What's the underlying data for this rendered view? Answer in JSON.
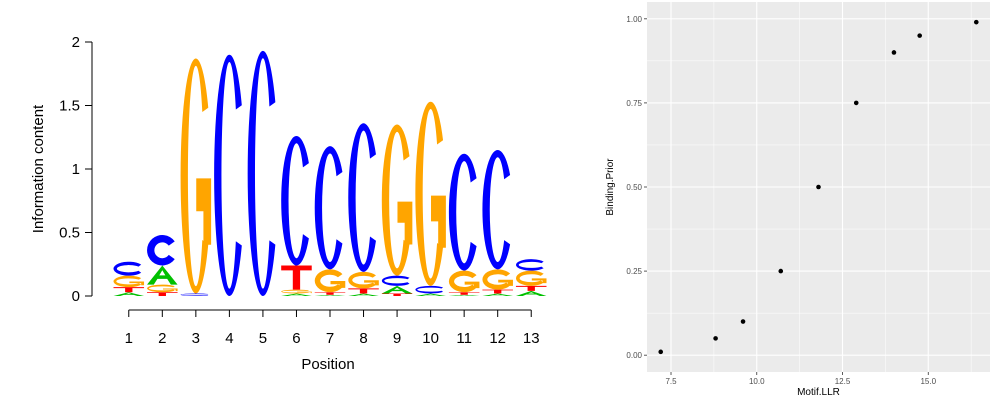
{
  "colors": {
    "A": "#00c000",
    "C": "#0000ff",
    "G": "#ffa500",
    "T": "#ff0000",
    "panel_bg": "#ebebeb",
    "grid": "#ffffff",
    "point": "#000000"
  },
  "chart_data": [
    {
      "type": "sequence-logo",
      "xlabel": "Position",
      "ylabel": "Information content",
      "ylim": [
        0,
        2
      ],
      "y_ticks": [
        "0",
        "0.5",
        "1",
        "1.5",
        "2"
      ],
      "positions": [
        "1",
        "2",
        "3",
        "4",
        "5",
        "6",
        "7",
        "8",
        "9",
        "10",
        "11",
        "12",
        "13"
      ],
      "columns": [
        [
          {
            "base": "A",
            "bits": 0.03
          },
          {
            "base": "T",
            "bits": 0.04
          },
          {
            "base": "G",
            "bits": 0.09
          },
          {
            "base": "C",
            "bits": 0.11
          }
        ],
        [
          {
            "base": "T",
            "bits": 0.03
          },
          {
            "base": "G",
            "bits": 0.06
          },
          {
            "base": "A",
            "bits": 0.15
          },
          {
            "base": "C",
            "bits": 0.24
          }
        ],
        [
          {
            "base": "C",
            "bits": 0.02
          },
          {
            "base": "G",
            "bits": 1.85
          }
        ],
        [
          {
            "base": "C",
            "bits": 1.9
          }
        ],
        [
          {
            "base": "C",
            "bits": 1.93
          }
        ],
        [
          {
            "base": "A",
            "bits": 0.02
          },
          {
            "base": "G",
            "bits": 0.03
          },
          {
            "base": "T",
            "bits": 0.19
          },
          {
            "base": "C",
            "bits": 1.02
          }
        ],
        [
          {
            "base": "A",
            "bits": 0.01
          },
          {
            "base": "T",
            "bits": 0.02
          },
          {
            "base": "G",
            "bits": 0.18
          },
          {
            "base": "C",
            "bits": 0.97
          }
        ],
        [
          {
            "base": "A",
            "bits": 0.02
          },
          {
            "base": "T",
            "bits": 0.04
          },
          {
            "base": "G",
            "bits": 0.13
          },
          {
            "base": "C",
            "bits": 1.17
          }
        ],
        [
          {
            "base": "T",
            "bits": 0.02
          },
          {
            "base": "A",
            "bits": 0.06
          },
          {
            "base": "C",
            "bits": 0.08
          },
          {
            "base": "G",
            "bits": 1.19
          }
        ],
        [
          {
            "base": "A",
            "bits": 0.02
          },
          {
            "base": "C",
            "bits": 0.06
          },
          {
            "base": "G",
            "bits": 1.45
          }
        ],
        [
          {
            "base": "A",
            "bits": 0.01
          },
          {
            "base": "T",
            "bits": 0.02
          },
          {
            "base": "G",
            "bits": 0.17
          },
          {
            "base": "C",
            "bits": 0.92
          }
        ],
        [
          {
            "base": "A",
            "bits": 0.02
          },
          {
            "base": "T",
            "bits": 0.03
          },
          {
            "base": "G",
            "bits": 0.16
          },
          {
            "base": "C",
            "bits": 0.94
          }
        ],
        [
          {
            "base": "A",
            "bits": 0.04
          },
          {
            "base": "T",
            "bits": 0.04
          },
          {
            "base": "G",
            "bits": 0.12
          },
          {
            "base": "C",
            "bits": 0.09
          }
        ]
      ]
    },
    {
      "type": "scatter",
      "xlabel": "Motif.LLR",
      "ylabel": "Binding.Prior",
      "xlim": [
        6.8,
        16.8
      ],
      "ylim": [
        -0.05,
        1.05
      ],
      "x_ticks": [
        7.5,
        10.0,
        12.5,
        15.0
      ],
      "x_tick_labels": [
        "7.5",
        "10.0",
        "12.5",
        "15.0"
      ],
      "y_ticks": [
        0,
        0.25,
        0.5,
        0.75,
        1
      ],
      "y_tick_labels": [
        "0.00",
        "0.25",
        "0.50",
        "0.75",
        "1.00"
      ],
      "grid": true,
      "points": [
        {
          "x": 7.2,
          "y": 0.01
        },
        {
          "x": 8.8,
          "y": 0.05
        },
        {
          "x": 9.6,
          "y": 0.1
        },
        {
          "x": 10.7,
          "y": 0.25
        },
        {
          "x": 11.8,
          "y": 0.5
        },
        {
          "x": 12.9,
          "y": 0.75
        },
        {
          "x": 14.0,
          "y": 0.9
        },
        {
          "x": 14.75,
          "y": 0.95
        },
        {
          "x": 16.4,
          "y": 0.99
        }
      ]
    }
  ]
}
